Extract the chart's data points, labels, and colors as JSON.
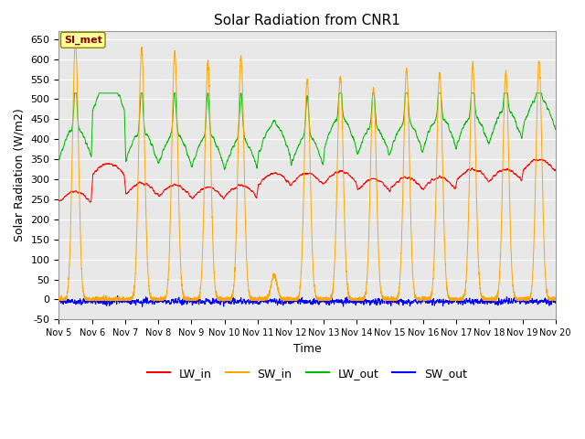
{
  "title": "Solar Radiation from CNR1",
  "xlabel": "Time",
  "ylabel": "Solar Radiation (W/m2)",
  "ylim": [
    -50,
    670
  ],
  "yticks": [
    -50,
    0,
    50,
    100,
    150,
    200,
    250,
    300,
    350,
    400,
    450,
    500,
    550,
    600,
    650
  ],
  "station_label": "SI_met",
  "legend_labels": [
    "LW_in",
    "SW_in",
    "LW_out",
    "SW_out"
  ],
  "line_colors": [
    "#ff0000",
    "#ffa500",
    "#00bb00",
    "#0000ff"
  ],
  "fig_bg_color": "#ffffff",
  "plot_bg_color": "#e8e8e8",
  "n_days": 15,
  "start_day": 5,
  "points_per_day": 288,
  "sw_in_peaks": [
    645,
    0,
    625,
    615,
    590,
    605,
    60,
    550,
    555,
    525,
    575,
    565,
    585,
    570,
    595
  ],
  "lw_in_day_base": [
    240,
    310,
    260,
    255,
    250,
    255,
    285,
    285,
    290,
    270,
    275,
    275,
    295,
    295,
    320
  ],
  "lw_out_day_base": [
    350,
    465,
    340,
    335,
    330,
    325,
    355,
    330,
    375,
    355,
    365,
    375,
    380,
    395,
    425
  ]
}
